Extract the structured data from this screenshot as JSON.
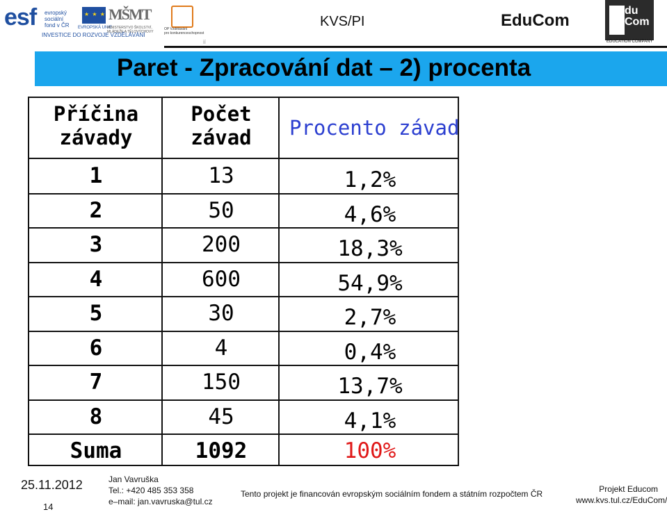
{
  "header": {
    "esf_mark": "esf",
    "esf_text": "evropský\nsociální\nfond v ČR",
    "eu_text": "EVROPSKÁ UNIE",
    "esf_bottom": "INVESTICE DO ROZVOJE VZDĚLÁVÁNÍ",
    "msmt_mark": "MŠMT",
    "msmt_text": "MINISTERSTVO ŠKOLSTVÍ,\nMLÁDEŽE A TĚLOVÝCHOVY",
    "op_text": "OP Vzdělávání\npro konkurenceschopnost",
    "title": "KVS/PI",
    "brand": "EduCom",
    "edu_logo_text": "du\nCom",
    "edu_caption": "EDUCATION COMPANY",
    "tick": "ií"
  },
  "slide": {
    "title": "Paret - Zpracování dat – 2) procenta"
  },
  "table": {
    "col1_header": "Příčina závady",
    "col2_header": "Počet závad",
    "col3_header": "Procento závad",
    "rows": [
      {
        "cause": "1",
        "count": "13",
        "percent": "1,2%"
      },
      {
        "cause": "2",
        "count": "50",
        "percent": "4,6%"
      },
      {
        "cause": "3",
        "count": "200",
        "percent": "18,3%"
      },
      {
        "cause": "4",
        "count": "600",
        "percent": "54,9%"
      },
      {
        "cause": "5",
        "count": "30",
        "percent": "2,7%"
      },
      {
        "cause": "6",
        "count": "4",
        "percent": "0,4%"
      },
      {
        "cause": "7",
        "count": "150",
        "percent": "13,7%"
      },
      {
        "cause": "8",
        "count": "45",
        "percent": "4,1%"
      }
    ],
    "sum": {
      "label": "Suma",
      "count": "1092",
      "percent": "100%"
    },
    "colors": {
      "header_percent": "#2c3fd0",
      "sum_percent": "#e01818"
    }
  },
  "footer": {
    "date": "25.11.2012",
    "page": "14",
    "author": "Jan Vavruška\nTel.: +420 485 353 358\ne–mail: jan.vavruska@tul.cz",
    "funding": "Tento projekt je financován evropským sociálním fondem a státním rozpočtem ČR",
    "project_name": "Projekt Educom",
    "project_url": "www.kvs.tul.cz/EduCom/"
  },
  "colors": {
    "title_bar": "#1ba6ed"
  }
}
